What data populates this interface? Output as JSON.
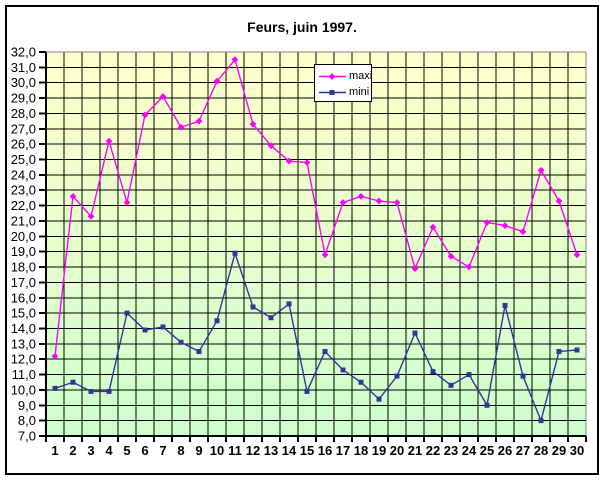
{
  "title": "Feurs, juin 1997.",
  "legend": {
    "items": [
      {
        "label": "maxi",
        "marker": "diamond",
        "color": "#FF00FF"
      },
      {
        "label": "mini",
        "marker": "square",
        "color": "#333399"
      }
    ]
  },
  "axes": {
    "y_tick_labels": [
      "32,0",
      "31,0",
      "30,0",
      "29,0",
      "28,0",
      "27,0",
      "26,0",
      "25,0",
      "24,0",
      "23,0",
      "22,0",
      "21,0",
      "20,0",
      "19,0",
      "18,0",
      "17,0",
      "16,0",
      "15,0",
      "14,0",
      "13,0",
      "12,0",
      "11,0",
      "10,0",
      "9,0",
      "8,0",
      "7,0"
    ],
    "x_tick_labels": [
      "1",
      "2",
      "3",
      "4",
      "5",
      "6",
      "7",
      "8",
      "9",
      "10",
      "11",
      "12",
      "13",
      "14",
      "15",
      "16",
      "17",
      "18",
      "19",
      "20",
      "21",
      "22",
      "23",
      "24",
      "25",
      "26",
      "27",
      "28",
      "29",
      "30"
    ]
  },
  "colors": {
    "maxi_line": "#FF00FF",
    "mini_line": "#333399",
    "gridline": "#000000",
    "axis_line": "#000000",
    "plot_border_gray": "#808080",
    "plot_bg_top": "#FFFFCC",
    "plot_bg_bottom": "#CCFFCC",
    "text": "#000000",
    "legend_bg": "#FFFFFF"
  },
  "chart_data": {
    "type": "line",
    "title": "Feurs, juin 1997.",
    "xlabel": "",
    "ylabel": "",
    "categories": [
      1,
      2,
      3,
      4,
      5,
      6,
      7,
      8,
      9,
      10,
      11,
      12,
      13,
      14,
      15,
      16,
      17,
      18,
      19,
      20,
      21,
      22,
      23,
      24,
      25,
      26,
      27,
      28,
      29,
      30
    ],
    "series": [
      {
        "name": "maxi",
        "color": "#FF00FF",
        "marker": "diamond",
        "values": [
          12.2,
          22.6,
          21.3,
          26.2,
          22.2,
          27.9,
          29.1,
          27.1,
          27.5,
          30.1,
          31.5,
          27.3,
          25.9,
          24.9,
          24.8,
          18.8,
          22.2,
          22.6,
          22.3,
          22.2,
          17.9,
          20.6,
          18.7,
          18.0,
          20.9,
          20.7,
          20.3,
          24.3,
          22.3,
          18.8
        ]
      },
      {
        "name": "mini",
        "color": "#333399",
        "marker": "square",
        "values": [
          10.1,
          10.5,
          9.9,
          9.9,
          15.0,
          13.9,
          14.1,
          13.1,
          12.5,
          14.5,
          18.9,
          15.4,
          14.7,
          15.6,
          9.9,
          12.5,
          11.3,
          10.5,
          9.4,
          10.9,
          13.7,
          11.2,
          10.3,
          11.0,
          9.0,
          15.5,
          10.9,
          8.0,
          12.5,
          12.6
        ]
      }
    ],
    "ylim": [
      7,
      32
    ],
    "ytick_step": 1.0,
    "decimal_separator": ",",
    "grid": true,
    "legend_position": "inside-top-center",
    "plot_bg_gradient": [
      "#FFFFCC",
      "#CCFFCC"
    ]
  }
}
